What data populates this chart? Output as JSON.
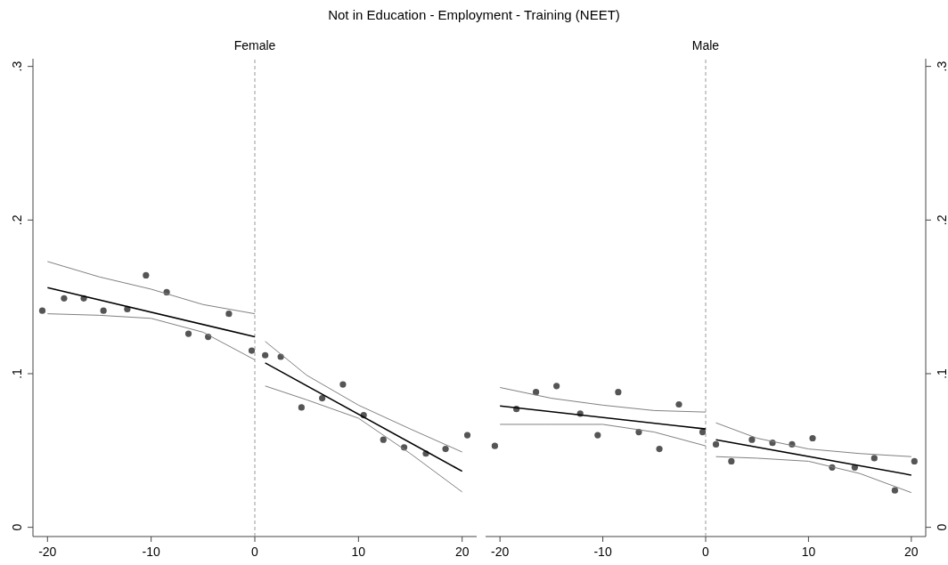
{
  "chart_data": [
    {
      "type": "scatter",
      "title": "Not in Education - Employment - Training (NEET)",
      "subtitle": "Female",
      "xlim": [
        -21.4,
        21.4
      ],
      "xticks": [
        -20,
        -10,
        0,
        10,
        20
      ],
      "ylim": [
        -0.006,
        0.305
      ],
      "yticks": [
        0,
        {
          "value": 0.1,
          "label": ".1"
        },
        {
          "value": 0.2,
          "label": ".2"
        },
        {
          "value": 0.3,
          "label": ".3"
        }
      ],
      "ref_lines": [
        {
          "axis": "x",
          "value": 0,
          "color": "#999999",
          "line_style": "dashed"
        }
      ],
      "series": [
        {
          "marker": "circle",
          "color": "#555555",
          "x": [
            -20.5,
            -18.4,
            -16.5,
            -14.6,
            -12.3,
            -10.5,
            -8.5,
            -6.4,
            -4.5,
            -2.5,
            -0.3,
            1.0,
            2.5,
            4.5,
            6.5,
            8.5,
            10.5,
            12.4,
            14.4,
            16.5,
            18.4,
            20.5
          ],
          "values": [
            0.141,
            0.149,
            0.149,
            0.141,
            0.142,
            0.164,
            0.153,
            0.126,
            0.124,
            0.139,
            0.115,
            0.112,
            0.111,
            0.078,
            0.084,
            0.093,
            0.073,
            0.057,
            0.052,
            0.048,
            0.051,
            0.06
          ]
        },
        {
          "type": "line",
          "color": "#000000",
          "x": [
            -20,
            0
          ],
          "values": [
            0.156,
            0.124
          ]
        },
        {
          "type": "line",
          "color": "#808080",
          "x": [
            -20,
            -15,
            -10,
            -5,
            0
          ],
          "values": [
            0.173,
            0.163,
            0.155,
            0.145,
            0.139
          ]
        },
        {
          "type": "line",
          "color": "#808080",
          "x": [
            -20,
            -15,
            -10,
            -5,
            0
          ],
          "values": [
            0.139,
            0.138,
            0.136,
            0.127,
            0.109
          ]
        },
        {
          "type": "line",
          "color": "#000000",
          "x": [
            1,
            20
          ],
          "values": [
            0.107,
            0.0365
          ]
        },
        {
          "type": "line",
          "color": "#808080",
          "x": [
            1,
            5,
            10,
            15,
            20
          ],
          "values": [
            0.121,
            0.099,
            0.0795,
            0.064,
            0.049
          ]
        },
        {
          "type": "line",
          "color": "#808080",
          "x": [
            1,
            5,
            10,
            15,
            20
          ],
          "values": [
            0.092,
            0.083,
            0.071,
            0.048,
            0.023
          ]
        }
      ]
    },
    {
      "type": "scatter",
      "subtitle": "Male",
      "xlim": [
        -21.4,
        21.4
      ],
      "xticks": [
        -20,
        -10,
        0,
        10,
        20
      ],
      "ylim": [
        -0.006,
        0.305
      ],
      "yticks": [
        0,
        {
          "value": 0.1,
          "label": ".1"
        },
        {
          "value": 0.2,
          "label": ".2"
        },
        {
          "value": 0.3,
          "label": ".3"
        }
      ],
      "ref_lines": [
        {
          "axis": "x",
          "value": 0,
          "color": "#999999",
          "line_style": "dashed"
        }
      ],
      "series": [
        {
          "marker": "circle",
          "color": "#555555",
          "x": [
            -20.5,
            -18.4,
            -16.5,
            -14.5,
            -12.2,
            -10.5,
            -8.5,
            -6.5,
            -4.5,
            -2.6,
            -0.3,
            1.0,
            2.5,
            4.5,
            6.5,
            8.4,
            10.4,
            12.3,
            14.5,
            16.4,
            18.4,
            20.3
          ],
          "values": [
            0.053,
            0.077,
            0.088,
            0.092,
            0.074,
            0.06,
            0.088,
            0.062,
            0.051,
            0.08,
            0.062,
            0.054,
            0.043,
            0.057,
            0.055,
            0.054,
            0.058,
            0.039,
            0.039,
            0.045,
            0.024,
            0.043
          ]
        },
        {
          "type": "line",
          "color": "#000000",
          "x": [
            -20,
            0
          ],
          "values": [
            0.079,
            0.064
          ]
        },
        {
          "type": "line",
          "color": "#808080",
          "x": [
            -20,
            -15,
            -10,
            -5,
            0
          ],
          "values": [
            0.091,
            0.084,
            0.0795,
            0.076,
            0.075
          ]
        },
        {
          "type": "line",
          "color": "#808080",
          "x": [
            -20,
            -15,
            -10,
            -5,
            0
          ],
          "values": [
            0.067,
            0.067,
            0.067,
            0.062,
            0.053
          ]
        },
        {
          "type": "line",
          "color": "#000000",
          "x": [
            1,
            20
          ],
          "values": [
            0.057,
            0.034
          ]
        },
        {
          "type": "line",
          "color": "#808080",
          "x": [
            1,
            5,
            10,
            15,
            20
          ],
          "values": [
            0.068,
            0.058,
            0.051,
            0.048,
            0.046
          ]
        },
        {
          "type": "line",
          "color": "#808080",
          "x": [
            1,
            5,
            10,
            15,
            20
          ],
          "values": [
            0.046,
            0.045,
            0.043,
            0.035,
            0.0226
          ]
        }
      ]
    }
  ]
}
